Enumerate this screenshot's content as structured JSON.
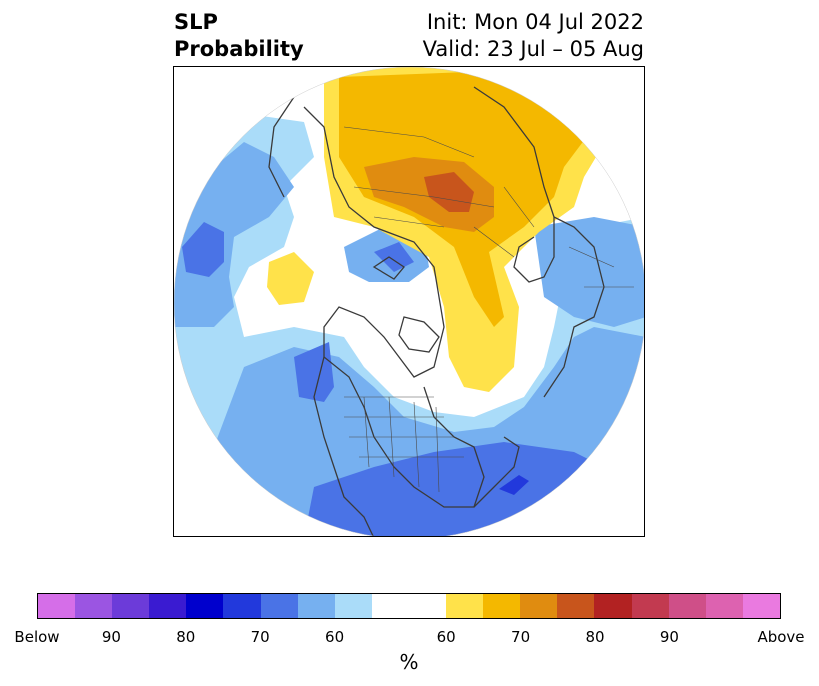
{
  "title": {
    "left_line1": "SLP",
    "left_line2": "Probability",
    "right_line1": "Init: Mon 04 Jul 2022",
    "right_line2": "Valid: 23 Jul – 05 Aug"
  },
  "map": {
    "projection": "north-polar-stereographic",
    "features": [
      "coastlines",
      "country-borders",
      "us-state-borders"
    ]
  },
  "colorbar": {
    "colors": [
      "#d56ee8",
      "#9b55e2",
      "#6c3bd9",
      "#3a1bd1",
      "#0000cd",
      "#2239dc",
      "#4a73e6",
      "#76b0f0",
      "#aadcf9",
      "#ffffff",
      "#ffe24a",
      "#f4b800",
      "#e08c10",
      "#c8551c",
      "#b22222",
      "#c23a50",
      "#cf4f88",
      "#dd62b0",
      "#ea7ae0"
    ],
    "tick_labels": [
      "Below",
      "90",
      "80",
      "70",
      "60",
      "60",
      "70",
      "80",
      "90",
      "Above"
    ],
    "unit_label": "%"
  }
}
